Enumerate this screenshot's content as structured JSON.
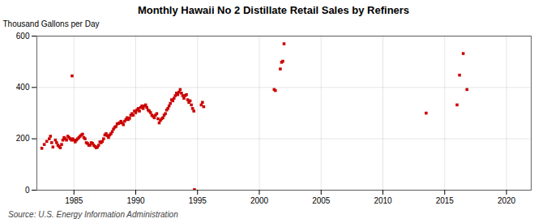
{
  "chart_data": {
    "type": "scatter",
    "title": "Monthly Hawaii No 2 Distillate Retail Sales by Refiners",
    "ylabel": "Thousand Gallons per Day",
    "source": "Source: U.S. Energy Information Administration",
    "color": "#cc0000",
    "marker": "square",
    "grid": true,
    "xlim": [
      1982.0,
      2022.0
    ],
    "ylim": [
      0,
      600
    ],
    "xticks": [
      1985,
      1990,
      1995,
      2000,
      2005,
      2010,
      2015,
      2020
    ],
    "yticks": [
      0,
      200,
      400,
      600
    ],
    "x": [
      1982.4,
      1982.6,
      1982.8,
      1983.0,
      1983.1,
      1983.2,
      1983.3,
      1983.5,
      1983.6,
      1983.7,
      1983.8,
      1983.9,
      1984.0,
      1984.1,
      1984.2,
      1984.3,
      1984.4,
      1984.5,
      1984.6,
      1984.7,
      1984.8,
      1984.9,
      1984.85,
      1985.0,
      1985.1,
      1985.2,
      1985.3,
      1985.4,
      1985.5,
      1985.6,
      1985.7,
      1985.8,
      1985.9,
      1986.0,
      1986.1,
      1986.2,
      1986.3,
      1986.4,
      1986.5,
      1986.6,
      1986.7,
      1986.8,
      1986.9,
      1987.0,
      1987.1,
      1987.2,
      1987.3,
      1987.4,
      1987.5,
      1987.6,
      1987.7,
      1987.8,
      1987.9,
      1988.0,
      1988.1,
      1988.2,
      1988.3,
      1988.4,
      1988.5,
      1988.6,
      1988.7,
      1988.8,
      1988.9,
      1989.0,
      1989.1,
      1989.2,
      1989.3,
      1989.4,
      1989.5,
      1989.6,
      1989.7,
      1989.8,
      1989.9,
      1990.0,
      1990.1,
      1990.2,
      1990.3,
      1990.4,
      1990.5,
      1990.6,
      1990.7,
      1990.8,
      1990.9,
      1991.0,
      1991.1,
      1991.2,
      1991.3,
      1991.4,
      1991.5,
      1991.6,
      1991.7,
      1991.8,
      1991.9,
      1992.0,
      1992.1,
      1992.2,
      1992.3,
      1992.4,
      1992.5,
      1992.6,
      1992.7,
      1992.8,
      1992.9,
      1993.0,
      1993.1,
      1993.2,
      1993.3,
      1993.4,
      1993.5,
      1993.6,
      1993.7,
      1993.8,
      1993.9,
      1994.0,
      1994.1,
      1994.2,
      1994.3,
      1994.4,
      1994.5,
      1994.6,
      1994.7,
      1994.75,
      1995.3,
      1995.4,
      1995.5,
      2001.2,
      2001.3,
      2001.7,
      2001.8,
      2001.9,
      2002.0,
      2013.5,
      2016.0,
      2016.2,
      2016.5,
      2016.8
    ],
    "values": [
      163,
      178,
      190,
      200,
      210,
      185,
      168,
      195,
      185,
      175,
      170,
      165,
      178,
      195,
      205,
      200,
      195,
      210,
      205,
      200,
      195,
      200,
      445,
      195,
      188,
      195,
      200,
      205,
      210,
      215,
      218,
      205,
      200,
      185,
      182,
      175,
      175,
      185,
      182,
      175,
      170,
      165,
      168,
      175,
      188,
      185,
      190,
      200,
      215,
      220,
      212,
      205,
      215,
      220,
      228,
      238,
      245,
      248,
      258,
      260,
      262,
      268,
      262,
      255,
      268,
      275,
      282,
      275,
      280,
      292,
      298,
      292,
      308,
      302,
      312,
      318,
      308,
      322,
      328,
      318,
      328,
      332,
      322,
      312,
      308,
      302,
      292,
      288,
      282,
      292,
      298,
      278,
      262,
      272,
      278,
      282,
      292,
      298,
      312,
      318,
      328,
      338,
      352,
      348,
      358,
      368,
      378,
      372,
      382,
      392,
      378,
      368,
      358,
      368,
      372,
      352,
      342,
      348,
      332,
      318,
      308,
      2,
      332,
      342,
      325,
      392,
      388,
      472,
      498,
      502,
      570,
      300,
      332,
      448,
      532,
      392
    ]
  }
}
